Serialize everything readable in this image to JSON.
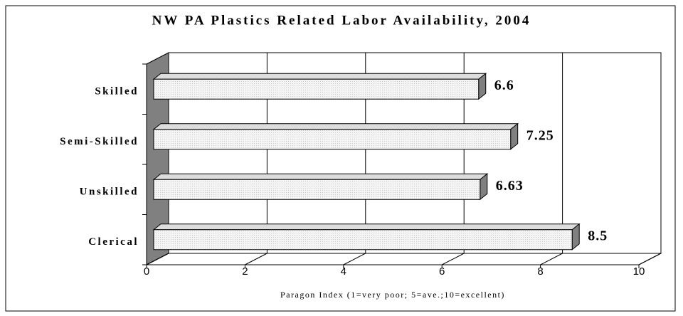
{
  "chart_data": {
    "type": "bar",
    "orientation": "horizontal",
    "title": "NW PA Plastics Related Labor Availability, 2004",
    "x_label": "Paragon Index (1=very poor; 5=ave.;10=excellent)",
    "categories": [
      "Skilled",
      "Semi-Skilled",
      "Unskilled",
      "Clerical"
    ],
    "values": [
      6.6,
      7.25,
      6.63,
      8.5
    ],
    "color": "#eeeeee",
    "xlim": [
      0,
      10
    ],
    "xticks": [
      0,
      2,
      4,
      6,
      8,
      10
    ],
    "grid": true
  }
}
